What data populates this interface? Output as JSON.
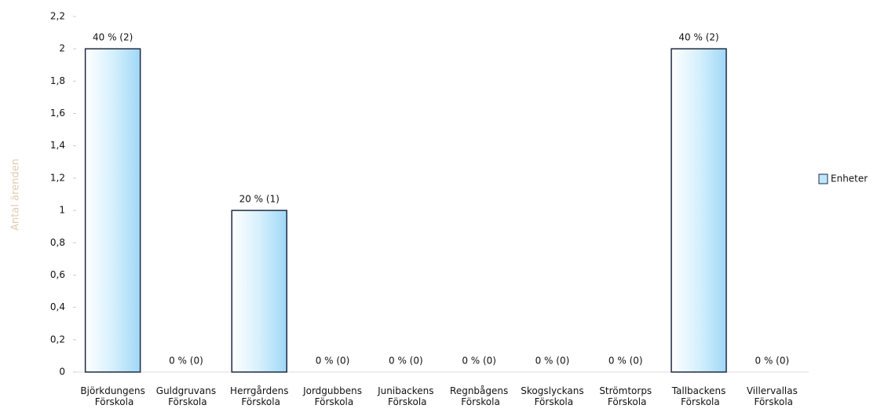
{
  "chart_data": {
    "type": "bar",
    "y_label": "Antal ärenden",
    "categories": [
      "Björkdungens Förskola",
      "Guldgruvans Förskola",
      "Herrgårdens Förskola",
      "Jordgubbens Förskola",
      "Junibackens Förskola",
      "Regnbågens Förskola",
      "Skogslyckans Förskola",
      "Strömtorps Förskola",
      "Tallbackens Förskola",
      "Villervallas Förskola"
    ],
    "series": [
      {
        "name": "Enheter",
        "color": "#bfe6fb",
        "values": [
          2,
          0,
          1,
          0,
          0,
          0,
          0,
          0,
          2,
          0
        ],
        "value_labels": [
          "40 % (2)",
          "0 % (0)",
          "20 % (1)",
          "0 % (0)",
          "0 % (0)",
          "0 % (0)",
          "0 % (0)",
          "0 % (0)",
          "40 % (2)",
          "0 % (0)"
        ]
      }
    ],
    "ylim": [
      0,
      2.2
    ],
    "yticks": [
      0,
      {
        "value": 0.2,
        "label": "0,2"
      },
      {
        "value": 0.4,
        "label": "0,4"
      },
      {
        "value": 0.6,
        "label": "0,6"
      },
      {
        "value": 0.8,
        "label": "0,8"
      },
      1,
      {
        "value": 1.2,
        "label": "1,2"
      },
      {
        "value": 1.4,
        "label": "1,4"
      },
      {
        "value": 1.6,
        "label": "1,6"
      },
      {
        "value": 1.8,
        "label": "1,8"
      },
      2,
      {
        "value": 2.2,
        "label": "2,2"
      }
    ],
    "grid": false,
    "legend": "right"
  }
}
